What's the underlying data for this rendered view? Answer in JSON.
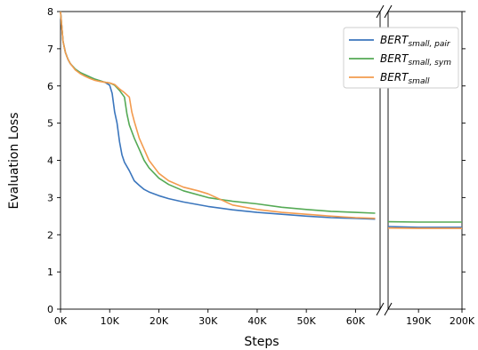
{
  "chart_data": {
    "type": "line",
    "xlabel": "Steps",
    "ylabel": "Evaluation Loss",
    "ylim": [
      0,
      8
    ],
    "yticks": [
      "0",
      "1",
      "2",
      "3",
      "4",
      "5",
      "6",
      "7",
      "8"
    ],
    "broken_x_axis": true,
    "segments": [
      {
        "range": [
          0,
          65000
        ],
        "ticks": [
          0,
          10000,
          20000,
          30000,
          40000,
          50000,
          60000
        ],
        "tick_labels": [
          "0K",
          "10K",
          "20K",
          "30K",
          "40K",
          "50K",
          "60K"
        ]
      },
      {
        "range": [
          183000,
          200000
        ],
        "ticks": [
          190000,
          200000
        ],
        "tick_labels": [
          "190K",
          "200K"
        ]
      }
    ],
    "legend_placement": "top-right",
    "series": [
      {
        "name": "BERT",
        "subscript": "small, pair",
        "color": "#3b76bd",
        "x": [
          0,
          500,
          1000,
          1500,
          2000,
          3000,
          4000,
          5000,
          6000,
          7000,
          8000,
          9000,
          10000,
          10500,
          11000,
          11500,
          12000,
          12500,
          13000,
          14000,
          15000,
          16000,
          17000,
          18000,
          20000,
          22000,
          25000,
          30000,
          35000,
          40000,
          45000,
          50000,
          55000,
          60000,
          64000,
          183000,
          190000,
          200000
        ],
        "y": [
          8.0,
          7.2,
          6.9,
          6.72,
          6.6,
          6.45,
          6.36,
          6.3,
          6.24,
          6.18,
          6.14,
          6.1,
          6.02,
          5.8,
          5.3,
          5.0,
          4.5,
          4.15,
          3.95,
          3.72,
          3.45,
          3.33,
          3.22,
          3.15,
          3.05,
          2.97,
          2.88,
          2.76,
          2.67,
          2.6,
          2.55,
          2.5,
          2.46,
          2.44,
          2.42,
          2.22,
          2.2,
          2.2
        ]
      },
      {
        "name": "BERT",
        "subscript": "small, sym",
        "color": "#55aa55",
        "x": [
          0,
          500,
          1000,
          1500,
          2000,
          3000,
          4000,
          5000,
          6000,
          7000,
          8000,
          9000,
          10000,
          11000,
          12000,
          13000,
          13500,
          14000,
          15000,
          16000,
          17000,
          18000,
          20000,
          22000,
          25000,
          30000,
          35000,
          40000,
          45000,
          50000,
          55000,
          60000,
          64000,
          183000,
          190000,
          200000
        ],
        "y": [
          8.0,
          7.2,
          6.9,
          6.72,
          6.6,
          6.45,
          6.36,
          6.3,
          6.24,
          6.18,
          6.14,
          6.1,
          6.08,
          6.02,
          5.88,
          5.7,
          5.25,
          4.95,
          4.6,
          4.3,
          4.0,
          3.8,
          3.52,
          3.35,
          3.18,
          3.0,
          2.9,
          2.83,
          2.74,
          2.68,
          2.63,
          2.6,
          2.58,
          2.35,
          2.34,
          2.34
        ]
      },
      {
        "name": "BERT",
        "subscript": "small",
        "color": "#f39b4e",
        "x": [
          0,
          500,
          1000,
          1500,
          2000,
          3000,
          4000,
          5000,
          6000,
          7000,
          8000,
          9000,
          10000,
          11000,
          12000,
          13000,
          14000,
          14500,
          15000,
          16000,
          17000,
          18000,
          20000,
          22000,
          25000,
          28000,
          30000,
          35000,
          40000,
          45000,
          50000,
          55000,
          60000,
          64000,
          183000,
          190000,
          200000
        ],
        "y": [
          8.0,
          7.2,
          6.9,
          6.72,
          6.6,
          6.43,
          6.33,
          6.26,
          6.2,
          6.15,
          6.12,
          6.1,
          6.08,
          6.04,
          5.92,
          5.82,
          5.7,
          5.3,
          5.05,
          4.6,
          4.3,
          4.0,
          3.65,
          3.45,
          3.28,
          3.18,
          3.1,
          2.8,
          2.68,
          2.6,
          2.55,
          2.5,
          2.46,
          2.44,
          2.18,
          2.17,
          2.17
        ]
      }
    ]
  }
}
